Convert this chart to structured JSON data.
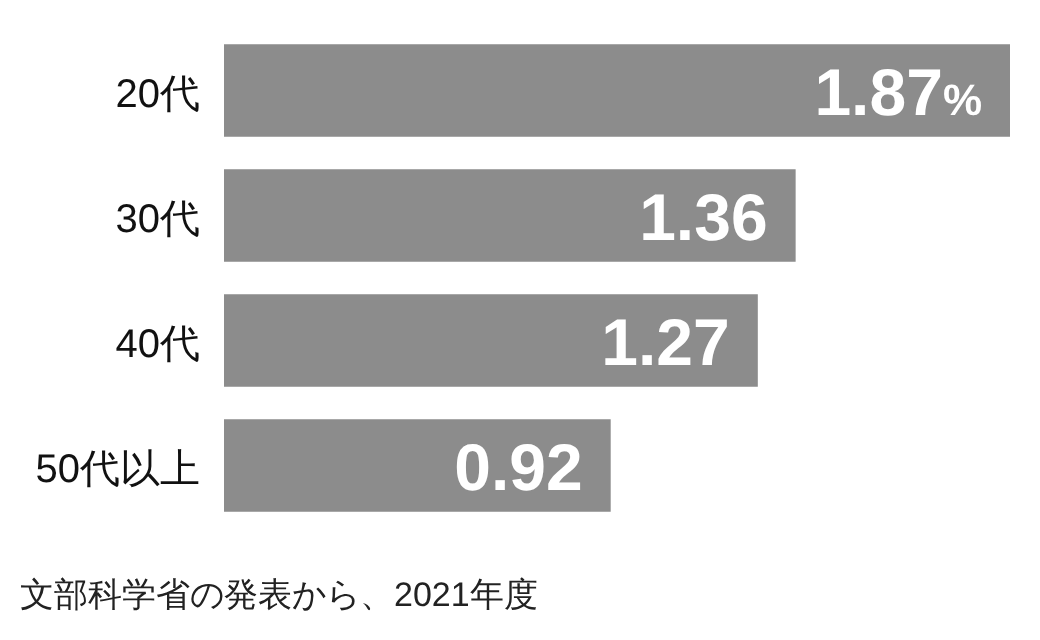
{
  "chart_data": {
    "type": "bar",
    "orientation": "horizontal",
    "categories": [
      "20代",
      "30代",
      "40代",
      "50代以上"
    ],
    "values": [
      1.87,
      1.36,
      1.27,
      0.92
    ],
    "color": "#8c8c8c",
    "value_labels": [
      "1.87%",
      "1.36",
      "1.27",
      "0.92"
    ],
    "annotations": [
      "文部科学省の発表から、2021年度"
    ]
  }
}
